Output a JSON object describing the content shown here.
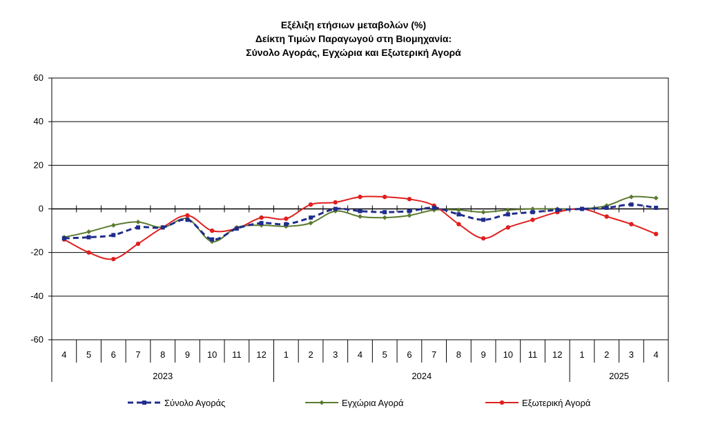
{
  "chart_data": {
    "type": "line",
    "title_lines": [
      "Εξέλιξη ετήσιων μεταβολών (%)",
      "Δείκτη Τιμών Παραγωγού στη Βιομηχανία:",
      "Σύνολο Αγοράς, Εγχώρια και Εξωτερική Αγορά"
    ],
    "months": [
      "4",
      "5",
      "6",
      "7",
      "8",
      "9",
      "10",
      "11",
      "12",
      "1",
      "2",
      "3",
      "4",
      "5",
      "6",
      "7",
      "8",
      "9",
      "10",
      "11",
      "12",
      "1",
      "2",
      "3",
      "4"
    ],
    "year_groups": [
      {
        "label": "2023",
        "count": 9
      },
      {
        "label": "2024",
        "count": 12
      },
      {
        "label": "2025",
        "count": 4
      }
    ],
    "y_ticks": [
      "60",
      "40",
      "20",
      "0",
      "-20",
      "-40",
      "-60"
    ],
    "ylim": [
      -60,
      60
    ],
    "y_step": 20,
    "grid": true,
    "legend_position": "bottom",
    "series": [
      {
        "name": "Σύνολο Αγοράς",
        "color": "#1f2d8c",
        "style": "dashed-square",
        "values": [
          -13.5,
          -13,
          -12,
          -8.5,
          -8.5,
          -5,
          -14,
          -9,
          -6.5,
          -7,
          -4,
          0,
          -1,
          -1.5,
          -1,
          0.5,
          -2.5,
          -5,
          -2.5,
          -1.5,
          -0.5,
          0,
          0.5,
          2,
          0.5
        ]
      },
      {
        "name": "Εγχώρια Αγορά",
        "color": "#5b7a2e",
        "style": "solid-diamond",
        "values": [
          -13,
          -10.5,
          -7.5,
          -6,
          -8.5,
          -4.5,
          -15,
          -8.5,
          -7.5,
          -8,
          -6.5,
          -1,
          -3.5,
          -4,
          -3,
          -0.5,
          -0.5,
          -1.5,
          -0.5,
          0,
          0,
          0,
          1.5,
          5.5,
          5
        ]
      },
      {
        "name": "Εξωτερική Αγορά",
        "color": "#e01e1e",
        "style": "solid-dot",
        "values": [
          -14,
          -20,
          -23,
          -16,
          -8.5,
          -3,
          -10,
          -9,
          -4,
          -4.5,
          2,
          3,
          5.5,
          5.5,
          4.5,
          1.5,
          -7,
          -13.5,
          -8.5,
          -5,
          -1.5,
          0,
          -3.5,
          -7,
          -11.5
        ]
      }
    ]
  }
}
